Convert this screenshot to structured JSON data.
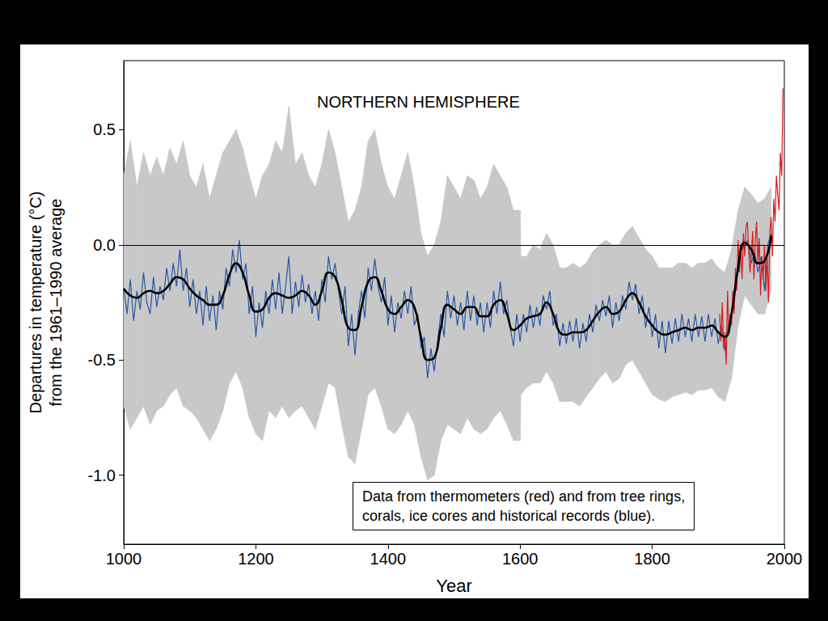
{
  "chart_data": {
    "type": "line",
    "title": "NORTHERN HEMISPHERE",
    "x_label": "Year",
    "y_label": "Departures in temperature (°C)\nfrom the 1961–1990 average",
    "annotation": "Data from thermometers (red) and from tree rings,\ncorals, ice cores and historical records (blue).",
    "xlim": [
      1000,
      2000
    ],
    "xticks": [
      1000,
      1200,
      1400,
      1600,
      1800,
      2000
    ],
    "ylim": [
      -1.3,
      0.8
    ],
    "yticks": [
      {
        "value": -1,
        "label": "-1.0"
      },
      {
        "value": -0.5,
        "label": "-0.5"
      },
      {
        "value": 0,
        "label": "0.0"
      },
      {
        "value": 0.5,
        "label": "0.5"
      }
    ],
    "hline": 0,
    "grid": false,
    "series": [
      {
        "type": "band",
        "color": "#c8c8c8",
        "x": [
          1000,
          1010,
          1020,
          1030,
          1040,
          1050,
          1060,
          1070,
          1080,
          1090,
          1100,
          1110,
          1120,
          1130,
          1140,
          1150,
          1160,
          1170,
          1180,
          1190,
          1200,
          1210,
          1220,
          1230,
          1240,
          1250,
          1260,
          1270,
          1280,
          1290,
          1300,
          1310,
          1320,
          1330,
          1340,
          1350,
          1360,
          1370,
          1380,
          1390,
          1400,
          1410,
          1420,
          1430,
          1440,
          1450,
          1460,
          1470,
          1480,
          1490,
          1500,
          1510,
          1520,
          1530,
          1540,
          1550,
          1560,
          1570,
          1580,
          1590,
          1600,
          1601,
          1610,
          1620,
          1630,
          1640,
          1650,
          1660,
          1670,
          1680,
          1690,
          1700,
          1710,
          1720,
          1730,
          1740,
          1750,
          1760,
          1770,
          1780,
          1790,
          1800,
          1810,
          1820,
          1830,
          1840,
          1850,
          1860,
          1870,
          1880,
          1890,
          1900,
          1910,
          1920,
          1930,
          1940,
          1950,
          1960,
          1970,
          1980
        ],
        "upper": [
          0.3,
          0.45,
          0.25,
          0.4,
          0.3,
          0.38,
          0.3,
          0.42,
          0.35,
          0.45,
          0.3,
          0.25,
          0.35,
          0.2,
          0.3,
          0.4,
          0.45,
          0.5,
          0.42,
          0.3,
          0.2,
          0.3,
          0.35,
          0.45,
          0.4,
          0.6,
          0.35,
          0.4,
          0.3,
          0.25,
          0.35,
          0.5,
          0.4,
          0.25,
          0.1,
          0.15,
          0.25,
          0.45,
          0.5,
          0.35,
          0.25,
          0.2,
          0.3,
          0.4,
          0.25,
          0.05,
          -0.05,
          0.0,
          0.1,
          0.3,
          0.25,
          0.2,
          0.3,
          0.28,
          0.2,
          0.25,
          0.35,
          0.3,
          0.25,
          0.15,
          0.15,
          -0.05,
          -0.05,
          0.0,
          -0.02,
          0.05,
          0.0,
          -0.1,
          -0.1,
          -0.08,
          -0.1,
          -0.08,
          -0.03,
          0.0,
          0.02,
          0.0,
          0.0,
          0.05,
          0.08,
          0.03,
          -0.02,
          -0.05,
          -0.1,
          -0.1,
          -0.1,
          -0.08,
          -0.08,
          -0.1,
          -0.08,
          -0.08,
          -0.06,
          -0.1,
          -0.12,
          -0.02,
          0.15,
          0.25,
          0.22,
          0.18,
          0.2,
          0.25
        ],
        "lower": [
          -0.7,
          -0.8,
          -0.75,
          -0.7,
          -0.78,
          -0.72,
          -0.7,
          -0.65,
          -0.62,
          -0.7,
          -0.72,
          -0.75,
          -0.8,
          -0.85,
          -0.8,
          -0.72,
          -0.6,
          -0.55,
          -0.62,
          -0.75,
          -0.82,
          -0.85,
          -0.72,
          -0.75,
          -0.7,
          -0.75,
          -0.72,
          -0.7,
          -0.75,
          -0.8,
          -0.7,
          -0.6,
          -0.62,
          -0.78,
          -0.92,
          -0.95,
          -0.8,
          -0.65,
          -0.62,
          -0.7,
          -0.8,
          -0.82,
          -0.78,
          -0.72,
          -0.78,
          -0.92,
          -1.02,
          -1.0,
          -0.85,
          -0.78,
          -0.8,
          -0.82,
          -0.75,
          -0.8,
          -0.82,
          -0.8,
          -0.75,
          -0.72,
          -0.78,
          -0.85,
          -0.85,
          -0.65,
          -0.62,
          -0.6,
          -0.6,
          -0.55,
          -0.6,
          -0.68,
          -0.68,
          -0.68,
          -0.7,
          -0.66,
          -0.62,
          -0.58,
          -0.55,
          -0.6,
          -0.58,
          -0.52,
          -0.5,
          -0.55,
          -0.6,
          -0.65,
          -0.67,
          -0.68,
          -0.66,
          -0.65,
          -0.64,
          -0.65,
          -0.63,
          -0.63,
          -0.62,
          -0.66,
          -0.68,
          -0.58,
          -0.35,
          -0.22,
          -0.26,
          -0.3,
          -0.3,
          -0.2
        ]
      },
      {
        "type": "line",
        "color": "#2458a8",
        "x": [
          1000,
          1005,
          1010,
          1015,
          1020,
          1025,
          1030,
          1035,
          1040,
          1045,
          1050,
          1055,
          1060,
          1065,
          1070,
          1075,
          1080,
          1085,
          1090,
          1095,
          1100,
          1105,
          1110,
          1115,
          1120,
          1125,
          1130,
          1135,
          1140,
          1145,
          1150,
          1155,
          1160,
          1165,
          1170,
          1175,
          1180,
          1185,
          1190,
          1195,
          1200,
          1205,
          1210,
          1215,
          1220,
          1225,
          1230,
          1235,
          1240,
          1245,
          1250,
          1255,
          1260,
          1265,
          1270,
          1275,
          1280,
          1285,
          1290,
          1295,
          1300,
          1305,
          1310,
          1315,
          1320,
          1325,
          1330,
          1335,
          1340,
          1345,
          1350,
          1355,
          1360,
          1365,
          1370,
          1375,
          1380,
          1385,
          1390,
          1395,
          1400,
          1405,
          1410,
          1415,
          1420,
          1425,
          1430,
          1435,
          1440,
          1445,
          1450,
          1455,
          1460,
          1465,
          1470,
          1475,
          1480,
          1485,
          1490,
          1495,
          1500,
          1505,
          1510,
          1515,
          1520,
          1525,
          1530,
          1535,
          1540,
          1545,
          1550,
          1555,
          1560,
          1565,
          1570,
          1575,
          1580,
          1585,
          1590,
          1595,
          1600,
          1605,
          1610,
          1615,
          1620,
          1625,
          1630,
          1635,
          1640,
          1645,
          1650,
          1655,
          1660,
          1665,
          1670,
          1675,
          1680,
          1685,
          1690,
          1695,
          1700,
          1705,
          1710,
          1715,
          1720,
          1725,
          1730,
          1735,
          1740,
          1745,
          1750,
          1755,
          1760,
          1765,
          1770,
          1775,
          1780,
          1785,
          1790,
          1795,
          1800,
          1805,
          1810,
          1815,
          1820,
          1825,
          1830,
          1835,
          1840,
          1845,
          1850,
          1855,
          1860,
          1865,
          1870,
          1875,
          1880,
          1885,
          1890,
          1895,
          1900,
          1905,
          1910,
          1915,
          1920,
          1925,
          1930,
          1935,
          1940,
          1945,
          1950,
          1955,
          1960,
          1965,
          1970,
          1975,
          1980
        ],
        "values": [
          -0.19,
          -0.3,
          -0.15,
          -0.33,
          -0.2,
          -0.28,
          -0.12,
          -0.25,
          -0.3,
          -0.14,
          -0.27,
          -0.18,
          -0.24,
          -0.1,
          -0.2,
          -0.08,
          -0.18,
          -0.02,
          -0.2,
          -0.1,
          -0.27,
          -0.15,
          -0.3,
          -0.2,
          -0.35,
          -0.18,
          -0.33,
          -0.22,
          -0.37,
          -0.2,
          -0.28,
          -0.1,
          -0.18,
          -0.02,
          -0.12,
          0.02,
          -0.15,
          -0.08,
          -0.3,
          -0.18,
          -0.4,
          -0.25,
          -0.36,
          -0.2,
          -0.3,
          -0.15,
          -0.28,
          -0.12,
          -0.3,
          -0.18,
          -0.05,
          -0.3,
          -0.16,
          -0.27,
          -0.13,
          -0.25,
          -0.17,
          -0.3,
          -0.2,
          -0.33,
          -0.15,
          -0.25,
          -0.05,
          -0.15,
          -0.08,
          -0.2,
          -0.3,
          -0.18,
          -0.44,
          -0.3,
          -0.48,
          -0.3,
          -0.2,
          -0.32,
          -0.1,
          -0.2,
          -0.06,
          -0.18,
          -0.25,
          -0.14,
          -0.35,
          -0.22,
          -0.38,
          -0.25,
          -0.32,
          -0.2,
          -0.3,
          -0.18,
          -0.35,
          -0.3,
          -0.45,
          -0.4,
          -0.58,
          -0.45,
          -0.55,
          -0.42,
          -0.3,
          -0.4,
          -0.2,
          -0.32,
          -0.22,
          -0.35,
          -0.25,
          -0.37,
          -0.2,
          -0.33,
          -0.22,
          -0.35,
          -0.25,
          -0.38,
          -0.25,
          -0.36,
          -0.2,
          -0.3,
          -0.16,
          -0.3,
          -0.24,
          -0.36,
          -0.44,
          -0.3,
          -0.42,
          -0.3,
          -0.38,
          -0.26,
          -0.36,
          -0.27,
          -0.35,
          -0.22,
          -0.28,
          -0.2,
          -0.35,
          -0.3,
          -0.44,
          -0.34,
          -0.43,
          -0.33,
          -0.42,
          -0.32,
          -0.45,
          -0.34,
          -0.42,
          -0.3,
          -0.38,
          -0.26,
          -0.33,
          -0.24,
          -0.31,
          -0.22,
          -0.36,
          -0.25,
          -0.33,
          -0.22,
          -0.28,
          -0.16,
          -0.24,
          -0.17,
          -0.3,
          -0.22,
          -0.36,
          -0.27,
          -0.4,
          -0.3,
          -0.45,
          -0.33,
          -0.47,
          -0.33,
          -0.43,
          -0.32,
          -0.42,
          -0.3,
          -0.4,
          -0.32,
          -0.42,
          -0.3,
          -0.4,
          -0.31,
          -0.42,
          -0.3,
          -0.4,
          -0.32,
          -0.43,
          -0.35,
          -0.46,
          -0.35,
          -0.3,
          -0.18,
          -0.12,
          -0.02,
          0.0,
          0.02,
          -0.08,
          -0.03,
          -0.12,
          -0.05,
          -0.2,
          0.0,
          0.05
        ]
      },
      {
        "type": "line",
        "color": "#d7191c",
        "x": [
          1902,
          1904,
          1906,
          1908,
          1910,
          1912,
          1914,
          1916,
          1918,
          1920,
          1922,
          1924,
          1926,
          1928,
          1930,
          1932,
          1934,
          1936,
          1938,
          1940,
          1942,
          1944,
          1946,
          1948,
          1950,
          1952,
          1954,
          1956,
          1958,
          1960,
          1962,
          1964,
          1966,
          1968,
          1970,
          1972,
          1974,
          1976,
          1978,
          1980,
          1982,
          1984,
          1986,
          1988,
          1990,
          1992,
          1994,
          1996,
          1998
        ],
        "values": [
          -0.3,
          -0.42,
          -0.25,
          -0.45,
          -0.38,
          -0.52,
          -0.2,
          -0.38,
          -0.3,
          -0.35,
          -0.2,
          -0.3,
          -0.1,
          -0.2,
          0.02,
          -0.12,
          0.0,
          -0.15,
          0.05,
          -0.05,
          0.08,
          0.1,
          -0.02,
          -0.12,
          -0.05,
          0.06,
          -0.15,
          0.02,
          0.1,
          -0.08,
          0.03,
          -0.22,
          -0.05,
          -0.15,
          0.0,
          -0.2,
          -0.05,
          -0.25,
          0.05,
          0.12,
          -0.05,
          0.2,
          0.1,
          0.3,
          0.22,
          0.15,
          0.4,
          0.3,
          0.68
        ]
      },
      {
        "type": "line",
        "color": "#000000",
        "line_style": "smooth",
        "x": [
          1000,
          1010,
          1020,
          1030,
          1040,
          1050,
          1060,
          1070,
          1080,
          1090,
          1100,
          1110,
          1120,
          1130,
          1140,
          1150,
          1160,
          1170,
          1180,
          1190,
          1200,
          1210,
          1220,
          1230,
          1240,
          1250,
          1260,
          1270,
          1280,
          1290,
          1300,
          1310,
          1320,
          1330,
          1340,
          1350,
          1360,
          1370,
          1380,
          1390,
          1400,
          1410,
          1420,
          1430,
          1440,
          1450,
          1460,
          1470,
          1480,
          1490,
          1500,
          1510,
          1520,
          1530,
          1540,
          1550,
          1560,
          1570,
          1580,
          1590,
          1600,
          1610,
          1620,
          1630,
          1640,
          1650,
          1660,
          1670,
          1680,
          1690,
          1700,
          1710,
          1720,
          1730,
          1740,
          1750,
          1760,
          1770,
          1780,
          1790,
          1800,
          1810,
          1820,
          1830,
          1840,
          1850,
          1860,
          1870,
          1880,
          1890,
          1900,
          1910,
          1920,
          1930,
          1940,
          1950,
          1960,
          1970,
          1980
        ],
        "values": [
          -0.19,
          -0.22,
          -0.23,
          -0.21,
          -0.2,
          -0.21,
          -0.2,
          -0.17,
          -0.14,
          -0.15,
          -0.19,
          -0.22,
          -0.24,
          -0.26,
          -0.26,
          -0.22,
          -0.13,
          -0.08,
          -0.12,
          -0.22,
          -0.29,
          -0.28,
          -0.23,
          -0.21,
          -0.22,
          -0.23,
          -0.22,
          -0.2,
          -0.22,
          -0.26,
          -0.2,
          -0.12,
          -0.14,
          -0.24,
          -0.36,
          -0.37,
          -0.27,
          -0.16,
          -0.14,
          -0.2,
          -0.28,
          -0.3,
          -0.27,
          -0.24,
          -0.27,
          -0.4,
          -0.5,
          -0.49,
          -0.36,
          -0.26,
          -0.28,
          -0.3,
          -0.27,
          -0.27,
          -0.31,
          -0.31,
          -0.26,
          -0.24,
          -0.3,
          -0.37,
          -0.35,
          -0.32,
          -0.31,
          -0.3,
          -0.25,
          -0.3,
          -0.38,
          -0.39,
          -0.38,
          -0.38,
          -0.37,
          -0.33,
          -0.29,
          -0.27,
          -0.3,
          -0.29,
          -0.24,
          -0.21,
          -0.25,
          -0.31,
          -0.35,
          -0.38,
          -0.39,
          -0.38,
          -0.37,
          -0.36,
          -0.37,
          -0.36,
          -0.36,
          -0.35,
          -0.38,
          -0.4,
          -0.3,
          -0.1,
          0.01,
          -0.02,
          -0.08,
          -0.07,
          0.04
        ]
      }
    ]
  }
}
